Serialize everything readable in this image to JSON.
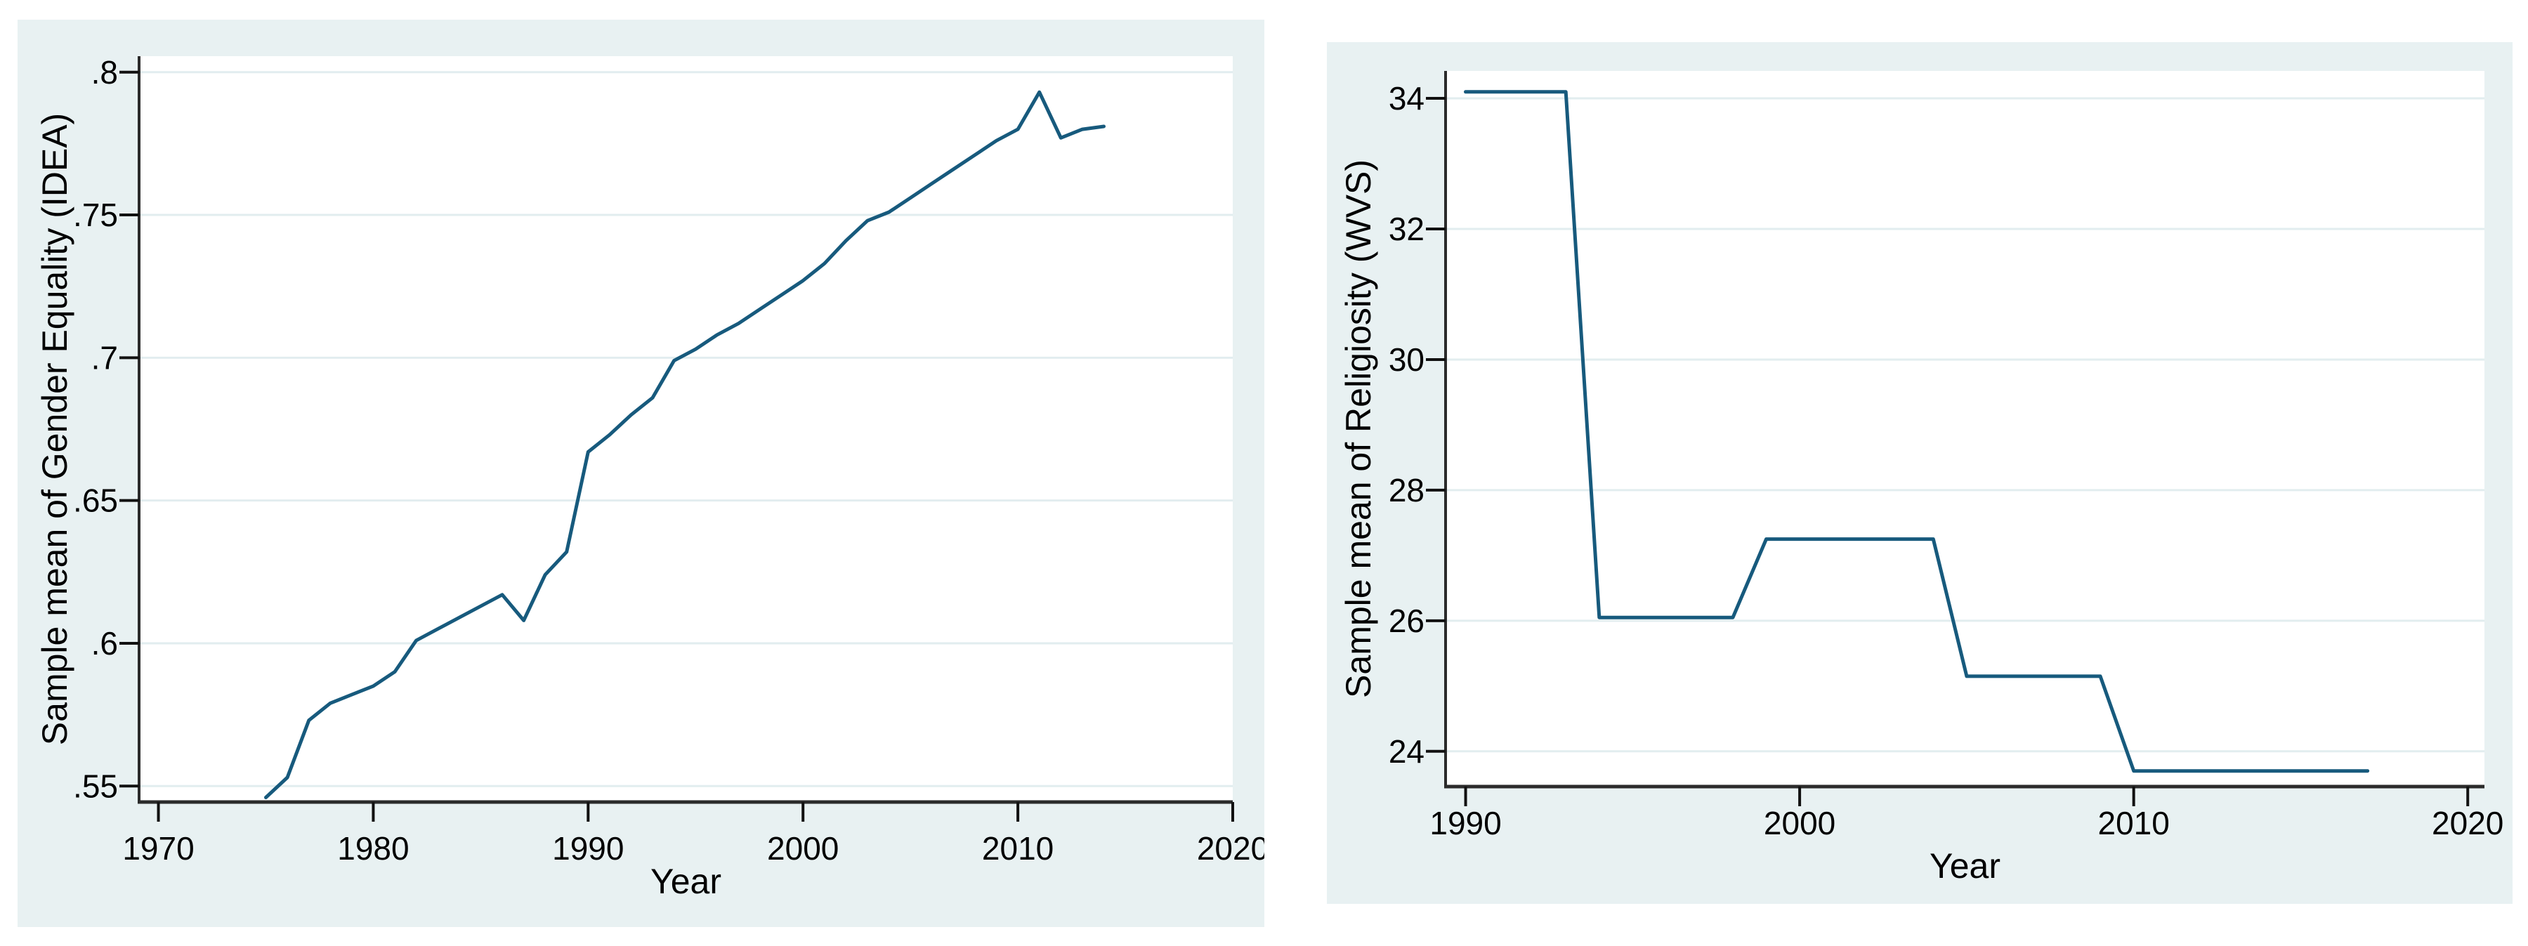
{
  "figure": {
    "description": "Two Stata-style line charts shown side by side",
    "panel_count": 2
  },
  "style": {
    "page_background": "#ffffff",
    "panel_background": "#e8f1f2",
    "plot_background": "#ffffff",
    "grid_color": "#e2edef",
    "axis_color": "#2b2b2b",
    "tick_color": "#111111",
    "text_color": "#000000",
    "line_color": "#175a7d"
  },
  "chart_data": [
    {
      "type": "line",
      "title": "",
      "xlabel": "Year",
      "ylabel": "Sample mean of Gender Equality (IDEA)",
      "grid": true,
      "legend": "none",
      "xlim": [
        1969.1,
        2020
      ],
      "ylim": [
        0.5444,
        0.8056
      ],
      "x_tick_values": [
        1970,
        1980,
        1990,
        2000,
        2010,
        2020
      ],
      "x_tick_labels": [
        "1970",
        "1980",
        "1990",
        "2000",
        "2010",
        "2020"
      ],
      "y_tick_values": [
        0.55,
        0.6,
        0.65,
        0.7,
        0.75,
        0.8
      ],
      "y_tick_labels": [
        ".55",
        ".6",
        ".65",
        ".7",
        ".75",
        ".8"
      ],
      "series": [
        {
          "name": "Sample mean of Gender Equality (IDEA)",
          "x": [
            1975,
            1976,
            1977,
            1978,
            1979,
            1980,
            1981,
            1982,
            1983,
            1984,
            1985,
            1986,
            1987,
            1988,
            1989,
            1990,
            1991,
            1992,
            1993,
            1994,
            1995,
            1996,
            1997,
            1998,
            1999,
            2000,
            2001,
            2002,
            2003,
            2004,
            2005,
            2006,
            2007,
            2008,
            2009,
            2010,
            2011,
            2012,
            2013,
            2014
          ],
          "y": [
            0.546,
            0.553,
            0.573,
            0.579,
            0.582,
            0.585,
            0.59,
            0.601,
            0.605,
            0.609,
            0.613,
            0.617,
            0.608,
            0.624,
            0.632,
            0.667,
            0.673,
            0.68,
            0.686,
            0.699,
            0.703,
            0.708,
            0.712,
            0.717,
            0.722,
            0.727,
            0.733,
            0.741,
            0.748,
            0.751,
            0.756,
            0.761,
            0.766,
            0.771,
            0.776,
            0.78,
            0.793,
            0.777,
            0.78,
            0.781
          ]
        }
      ]
    },
    {
      "type": "line",
      "title": "",
      "xlabel": "Year",
      "ylabel": "Sample mean of Religiosity (WVS)",
      "grid": true,
      "legend": "none",
      "xlim": [
        1989.4,
        2020.5
      ],
      "ylim": [
        23.46,
        34.42
      ],
      "x_tick_values": [
        1990,
        2000,
        2010,
        2020
      ],
      "x_tick_labels": [
        "1990",
        "2000",
        "2010",
        "2020"
      ],
      "y_tick_values": [
        24,
        26,
        28,
        30,
        32,
        34
      ],
      "y_tick_labels": [
        "24",
        "26",
        "28",
        "30",
        "32",
        "34"
      ],
      "series": [
        {
          "name": "Sample mean of Religiosity (WVS)",
          "x": [
            1990,
            1991,
            1992,
            1993,
            1994,
            1995,
            1996,
            1997,
            1998,
            1999,
            2000,
            2001,
            2002,
            2003,
            2004,
            2005,
            2006,
            2007,
            2008,
            2009,
            2010,
            2011,
            2012,
            2013,
            2014,
            2015,
            2016,
            2017
          ],
          "y": [
            34.1,
            34.1,
            34.1,
            34.1,
            26.05,
            26.05,
            26.05,
            26.05,
            26.05,
            27.25,
            27.25,
            27.25,
            27.25,
            27.25,
            27.25,
            25.15,
            25.15,
            25.15,
            25.15,
            25.15,
            23.7,
            23.7,
            23.7,
            23.7,
            23.7,
            23.7,
            23.7,
            23.7
          ]
        }
      ]
    }
  ]
}
